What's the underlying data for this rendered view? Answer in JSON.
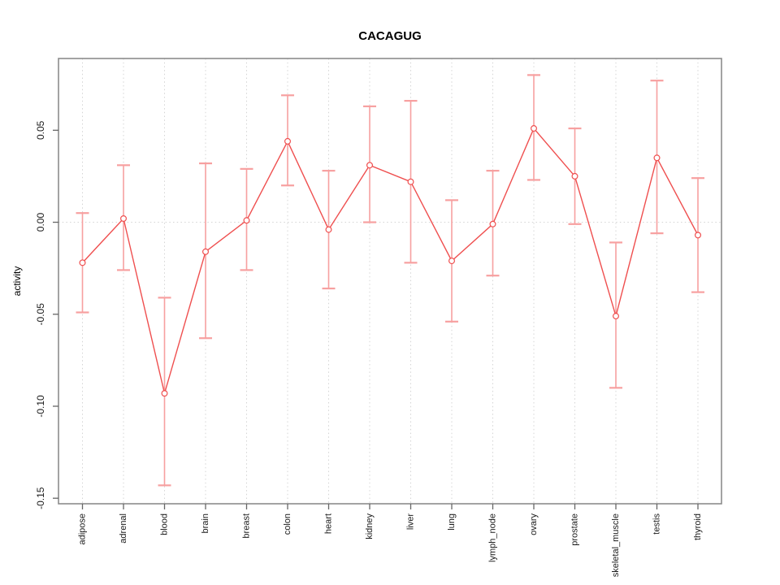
{
  "chart_data": {
    "type": "line",
    "title": "CACAGUG",
    "xlabel": "",
    "ylabel": "activity",
    "legend": "none",
    "grid": {
      "vertical_dotted_per_category": true,
      "horizontal_dotted_at_zero": true
    },
    "marker": "open-circle",
    "categories": [
      "adipose",
      "adrenal",
      "blood",
      "brain",
      "breast",
      "colon",
      "heart",
      "kidney",
      "liver",
      "lung",
      "lymph_node",
      "ovary",
      "prostate",
      "skeletal_muscle",
      "testis",
      "thyroid"
    ],
    "values": [
      -0.022,
      0.002,
      -0.093,
      -0.016,
      0.001,
      0.044,
      -0.004,
      0.031,
      0.022,
      -0.021,
      -0.001,
      0.051,
      0.025,
      -0.051,
      0.035,
      -0.007
    ],
    "error_upper": [
      0.005,
      0.031,
      -0.041,
      0.032,
      0.029,
      0.069,
      0.028,
      0.063,
      0.066,
      0.012,
      0.028,
      0.08,
      0.051,
      -0.011,
      0.077,
      0.024
    ],
    "error_lower": [
      -0.049,
      -0.026,
      -0.143,
      -0.063,
      -0.026,
      0.02,
      -0.036,
      0.0,
      -0.022,
      -0.054,
      -0.029,
      0.023,
      -0.001,
      -0.09,
      -0.006,
      -0.038
    ],
    "ylim": [
      -0.153,
      0.089
    ],
    "yticks": [
      0.05,
      0.0,
      -0.05,
      -0.1,
      -0.15
    ],
    "ytick_labels": [
      "0.05",
      "0.00",
      "-0.05",
      "-0.10",
      "-0.15"
    ],
    "colors": {
      "line": "#ef4f4f",
      "errorbar": "#f7a0a0",
      "frame": "#8c8c8c",
      "tick": "#666666",
      "gridline": "#d4d4d4",
      "background": "#ffffff"
    }
  }
}
